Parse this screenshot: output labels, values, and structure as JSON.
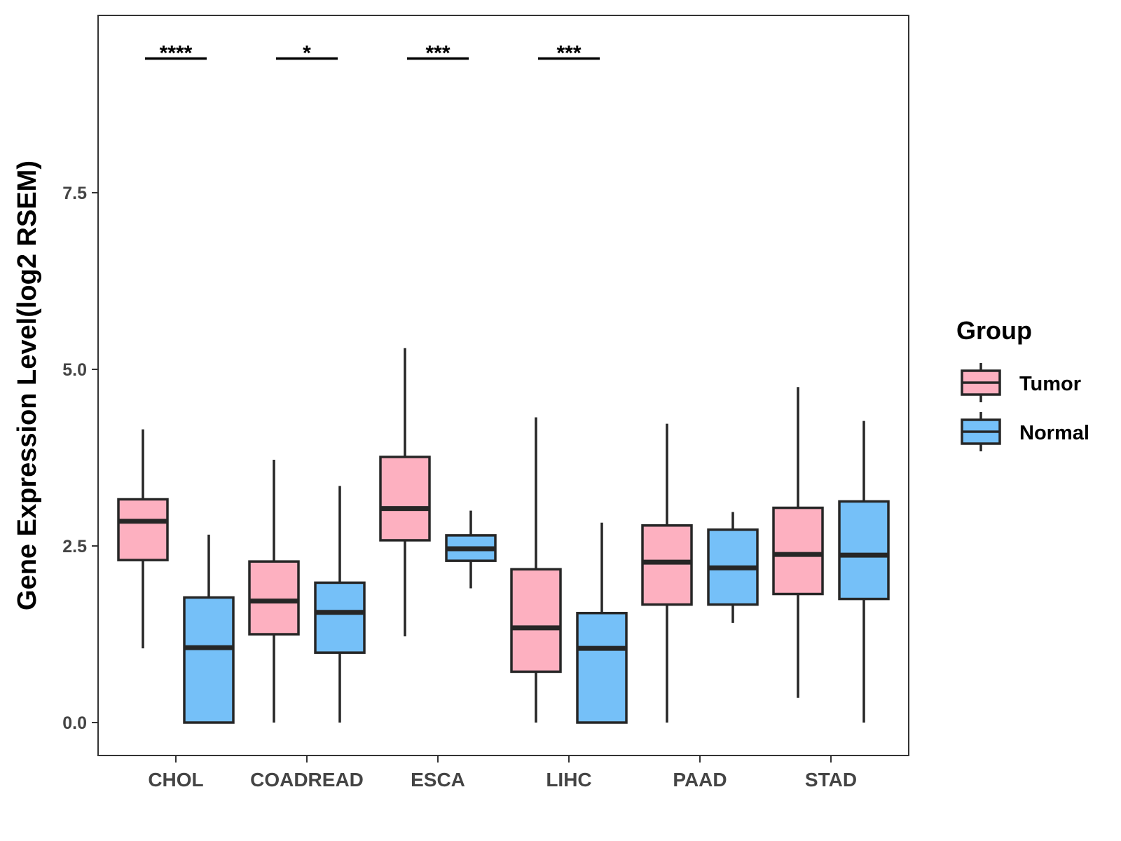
{
  "chart_data": {
    "type": "boxplot",
    "title": "",
    "xlabel": "",
    "ylabel": "Gene Expression Level(log2 RSEM)",
    "ylim": [
      -0.45,
      10.0
    ],
    "yticks": [
      0.0,
      2.5,
      5.0,
      7.5
    ],
    "ytick_labels": [
      "0.0",
      "2.5",
      "5.0",
      "7.5"
    ],
    "categories": [
      "CHOL",
      "COADREAD",
      "ESCA",
      "LIHC",
      "PAAD",
      "STAD"
    ],
    "legend": {
      "title": "Group",
      "position": "right",
      "entries": [
        "Tumor",
        "Normal"
      ]
    },
    "colors": {
      "Tumor": "#FDB0C0",
      "Normal": "#75C0F8",
      "outline": "#262626"
    },
    "series": [
      {
        "name": "Tumor",
        "boxes": [
          {
            "category": "CHOL",
            "whisker_low": 1.05,
            "q1": 2.3,
            "median": 2.85,
            "q3": 3.16,
            "whisker_high": 4.15
          },
          {
            "category": "COADREAD",
            "whisker_low": 0.0,
            "q1": 1.25,
            "median": 1.72,
            "q3": 2.28,
            "whisker_high": 3.72
          },
          {
            "category": "ESCA",
            "whisker_low": 1.22,
            "q1": 2.58,
            "median": 3.03,
            "q3": 3.76,
            "whisker_high": 5.3
          },
          {
            "category": "LIHC",
            "whisker_low": 0.0,
            "q1": 0.72,
            "median": 1.34,
            "q3": 2.17,
            "whisker_high": 4.32
          },
          {
            "category": "PAAD",
            "whisker_low": 0.0,
            "q1": 1.67,
            "median": 2.27,
            "q3": 2.79,
            "whisker_high": 4.23
          },
          {
            "category": "STAD",
            "whisker_low": 0.35,
            "q1": 1.82,
            "median": 2.38,
            "q3": 3.04,
            "whisker_high": 4.75
          }
        ]
      },
      {
        "name": "Normal",
        "boxes": [
          {
            "category": "CHOL",
            "whisker_low": 0.0,
            "q1": 0.0,
            "median": 1.06,
            "q3": 1.77,
            "whisker_high": 2.66
          },
          {
            "category": "COADREAD",
            "whisker_low": 0.0,
            "q1": 0.99,
            "median": 1.56,
            "q3": 1.98,
            "whisker_high": 3.35
          },
          {
            "category": "ESCA",
            "whisker_low": 1.9,
            "q1": 2.29,
            "median": 2.46,
            "q3": 2.65,
            "whisker_high": 3.0
          },
          {
            "category": "LIHC",
            "whisker_low": 0.0,
            "q1": 0.0,
            "median": 1.05,
            "q3": 1.55,
            "whisker_high": 2.83
          },
          {
            "category": "PAAD",
            "whisker_low": 1.41,
            "q1": 1.67,
            "median": 2.19,
            "q3": 2.73,
            "whisker_high": 2.98
          },
          {
            "category": "STAD",
            "whisker_low": 0.0,
            "q1": 1.75,
            "median": 2.37,
            "q3": 3.13,
            "whisker_high": 4.27
          }
        ]
      }
    ],
    "significance": [
      {
        "category": "CHOL",
        "label": "****",
        "y": 9.4
      },
      {
        "category": "COADREAD",
        "label": "*",
        "y": 9.4
      },
      {
        "category": "ESCA",
        "label": "***",
        "y": 9.4
      },
      {
        "category": "LIHC",
        "label": "***",
        "y": 9.4
      }
    ]
  }
}
